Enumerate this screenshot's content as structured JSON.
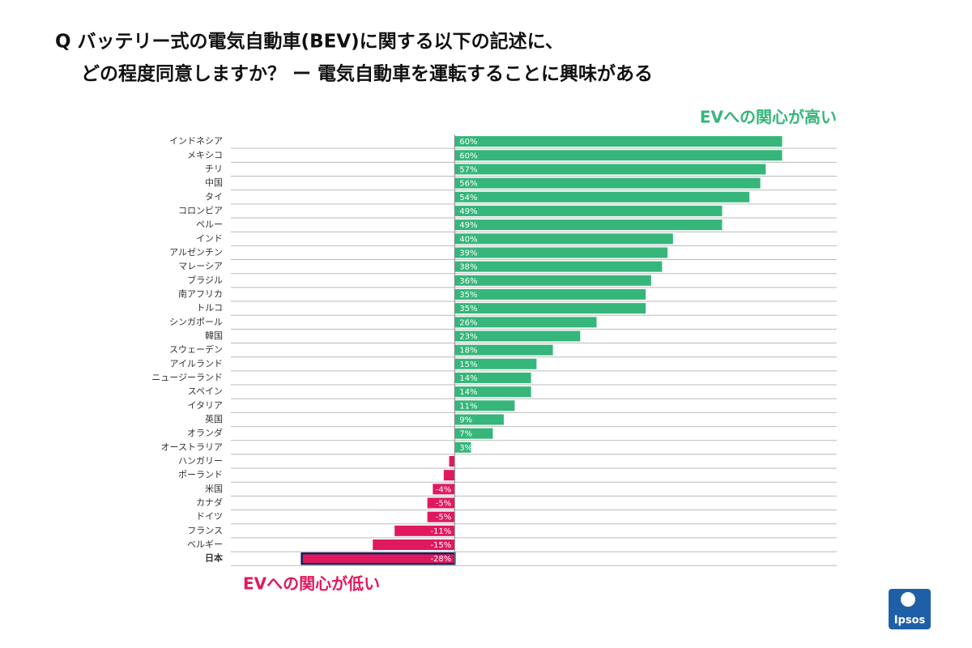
{
  "chart_data": {
    "type": "diverging-bar",
    "title": [
      "Q バッテリー式の電気自動車(BEV)に関する以下の記述に、",
      "どの程度同意しますか？ ー 電気自動車を運転することに興味がある"
    ],
    "annotations": {
      "high": "EVへの関心が高い",
      "low": "EVへの関心が低い"
    },
    "categories": [
      "インドネシア",
      "メキシコ",
      "チリ",
      "中国",
      "タイ",
      "コロンビア",
      "ペルー",
      "インド",
      "アルゼンチン",
      "マレーシア",
      "ブラジル",
      "南アフリカ",
      "トルコ",
      "シンガポール",
      "韓国",
      "スウェーデン",
      "アイルランド",
      "ニュージーランド",
      "スペイン",
      "イタリア",
      "英国",
      "オランダ",
      "オーストラリア",
      "ハンガリー",
      "ポーランド",
      "米国",
      "カナダ",
      "ドイツ",
      "フランス",
      "ベルギー",
      "日本"
    ],
    "values": [
      60,
      60,
      57,
      56,
      54,
      49,
      49,
      40,
      39,
      38,
      36,
      35,
      35,
      26,
      23,
      18,
      15,
      14,
      14,
      11,
      9,
      7,
      3,
      -1,
      -2,
      -4,
      -5,
      -5,
      -11,
      -15,
      -28
    ],
    "value_labels": [
      "60%",
      "60%",
      "57%",
      "56%",
      "54%",
      "49%",
      "49%",
      "40%",
      "39%",
      "38%",
      "36%",
      "35%",
      "35%",
      "26%",
      "23%",
      "18%",
      "15%",
      "14%",
      "14%",
      "11%",
      "9%",
      "7%",
      "3%",
      null,
      null,
      "-4%",
      "-5%",
      "-5%",
      "-11%",
      "-15%",
      "-28%"
    ],
    "positive_color": "#36b67a",
    "negative_color": "#e0195f",
    "highlight": "日本",
    "highlight_color": "#1b1f5c",
    "xlim": [
      -41,
      70
    ]
  },
  "logo": "Ipsos"
}
